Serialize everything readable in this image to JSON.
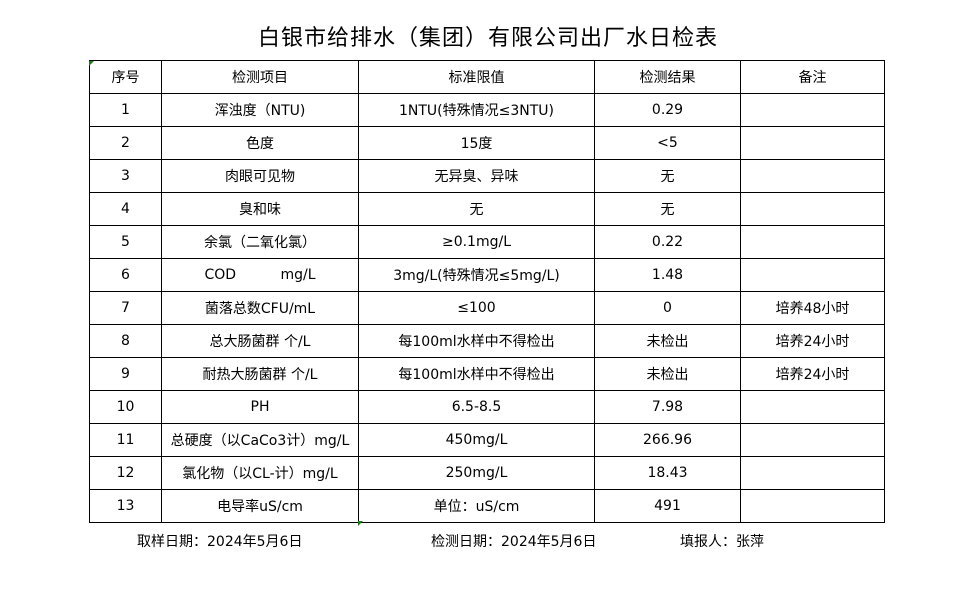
{
  "title": "白银市给排水（集团）有限公司出厂水日检表",
  "headers": [
    "序号",
    "检测项目",
    "标准限值",
    "检测结果",
    "备注"
  ],
  "rows": [
    [
      "1",
      "浑浊度（NTU)",
      "1NTU(特殊情况≤3NTU)",
      "0.29",
      ""
    ],
    [
      "2",
      "色度",
      "15度",
      "<5",
      ""
    ],
    [
      "3",
      "肉眼可见物",
      "无异臭、异味",
      "无",
      ""
    ],
    [
      "4",
      "臭和味",
      "无",
      "无",
      ""
    ],
    [
      "5",
      "余氯（二氧化氯）",
      "≥0.1mg/L",
      "0.22",
      ""
    ],
    [
      "6",
      "COD          mg/L",
      "3mg/L(特殊情况≤5mg/L)",
      "1.48",
      ""
    ],
    [
      "7",
      "菌落总数CFU/mL",
      "≤100",
      "0",
      "培养48小时"
    ],
    [
      "8",
      "总大肠菌群 个/L",
      "每100ml水样中不得检出",
      "未检出",
      "培养24小时"
    ],
    [
      "9",
      "耐热大肠菌群 个/L",
      "每100ml水样中不得检出",
      "未检出",
      "培养24小时"
    ],
    [
      "10",
      "PH",
      "6.5-8.5",
      "7.98",
      ""
    ],
    [
      "11",
      "总硬度（以CaCo3计）mg/L",
      "450mg/L",
      "266.96",
      ""
    ],
    [
      "12",
      "氯化物（以CL-计）mg/L",
      "250mg/L",
      "18.43",
      ""
    ],
    [
      "13",
      "电导率uS/cm",
      "单位：uS/cm",
      "491",
      ""
    ]
  ],
  "footer": {
    "sampling_date": "取样日期：2024年5月6日",
    "test_date": "检测日期：2024年5月6日",
    "reporter": "填报人：张萍"
  }
}
